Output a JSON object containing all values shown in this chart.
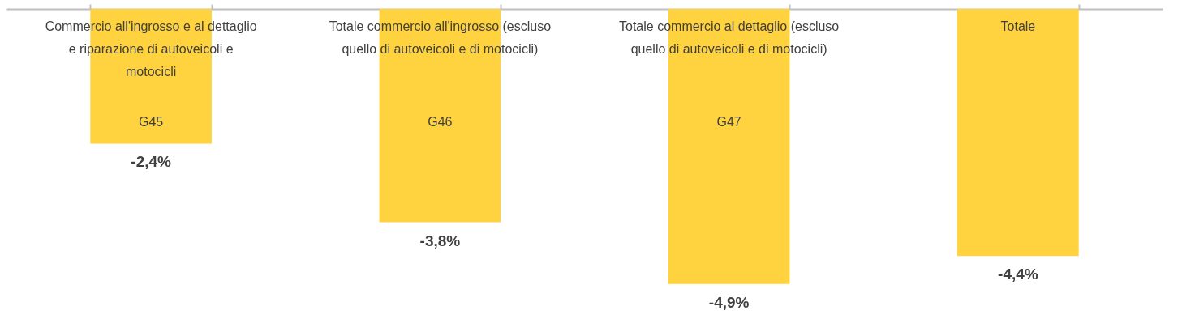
{
  "chart_data": {
    "type": "bar",
    "categories": [
      "Commercio all'ingrosso e al dettaglio e riparazione di autoveicoli e motocicli",
      "Totale commercio all'ingrosso (escluso quello di autoveicoli e di motocicli)",
      "Totale commercio al dettaglio (escluso quello di autoveicoli e di motocicli)",
      "Totale"
    ],
    "values": [
      -2.4,
      -3.8,
      -4.9,
      -4.4
    ],
    "value_labels": [
      "-2,4%",
      "-3,8%",
      "-4,9%",
      "-4,4%"
    ],
    "color": "#ffd23f",
    "annotations": [
      "G45",
      "G46",
      "G47"
    ]
  }
}
